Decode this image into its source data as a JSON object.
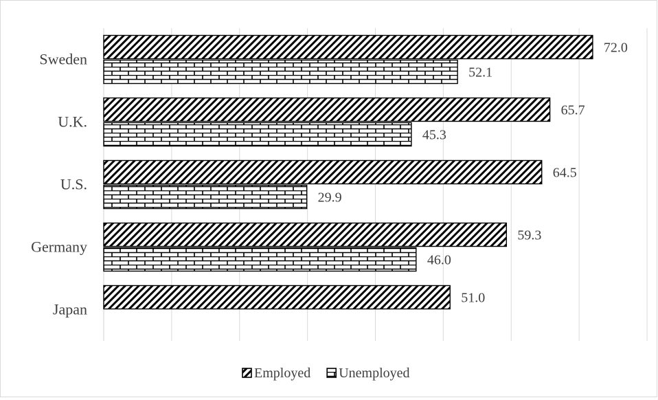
{
  "chart_data": {
    "type": "bar",
    "orientation": "horizontal",
    "categories": [
      "Sweden",
      "U.K.",
      "U.S.",
      "Germany",
      "Japan"
    ],
    "series": [
      {
        "name": "Employed",
        "values": [
          72.0,
          65.7,
          64.5,
          59.3,
          51.0
        ],
        "pattern": "diagonal-hatch"
      },
      {
        "name": "Unemployed",
        "values": [
          52.1,
          45.3,
          29.9,
          46.0,
          null
        ],
        "pattern": "brick"
      }
    ],
    "value_labels": {
      "Employed": [
        "72.0",
        "65.7",
        "64.5",
        "59.3",
        "51.0"
      ],
      "Unemployed": [
        "52.1",
        "45.3",
        "29.9",
        "46.0",
        ""
      ]
    },
    "xlim": [
      0,
      80
    ],
    "grid": true,
    "legend_position": "bottom",
    "colors": {
      "fill": "#ffffff",
      "stroke": "#000000",
      "grid": "#d9d9d9",
      "text": "#404040"
    }
  }
}
